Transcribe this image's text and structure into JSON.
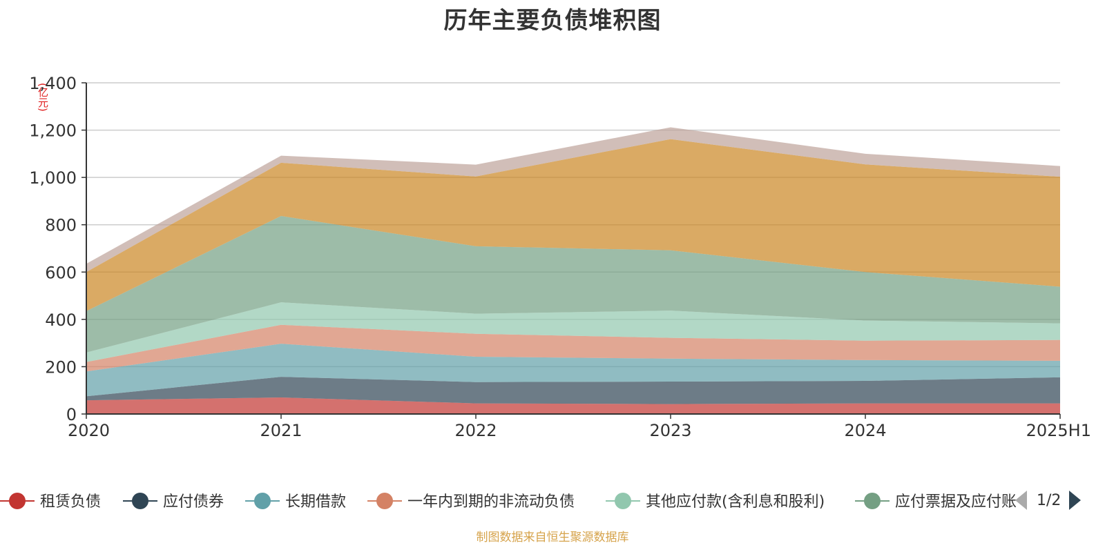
{
  "chart_data": {
    "type": "area",
    "title": "历年主要负债堆积图",
    "ylabel": "(亿元)",
    "categories": [
      "2020",
      "2021",
      "2022",
      "2023",
      "2024",
      "2025H1"
    ],
    "ylim": [
      0,
      1400
    ],
    "yticks": [
      0,
      200,
      400,
      600,
      800,
      1000,
      1200,
      1400
    ],
    "ytick_labels": [
      "0",
      "200",
      "400",
      "600",
      "800",
      "1,000",
      "1,200",
      "1,400"
    ],
    "stacked": true,
    "grid": true,
    "series": [
      {
        "name": "租赁负债",
        "color": "#c23531",
        "values": [
          58,
          70,
          45,
          42,
          45,
          45
        ]
      },
      {
        "name": "应付债券",
        "color": "#2f4554",
        "values": [
          17,
          87,
          90,
          95,
          95,
          110
        ]
      },
      {
        "name": "长期借款",
        "color": "#61a0a8",
        "values": [
          105,
          140,
          107,
          97,
          88,
          70
        ]
      },
      {
        "name": "一年内到期的非流动负债",
        "color": "#d48265",
        "values": [
          40,
          80,
          97,
          88,
          82,
          88
        ]
      },
      {
        "name": "其他应付款(含利息和股利)",
        "color": "#91c7ae",
        "values": [
          40,
          95,
          85,
          115,
          85,
          70
        ]
      },
      {
        "name": "应付票据及应付账款",
        "color": "#749f83",
        "values": [
          175,
          365,
          285,
          255,
          205,
          155
        ]
      },
      {
        "name": "",
        "color": "#ca8622",
        "values": [
          165,
          225,
          295,
          470,
          455,
          465
        ]
      },
      {
        "name": "",
        "color": "#bda29a",
        "values": [
          35,
          30,
          50,
          50,
          45,
          45
        ]
      }
    ]
  },
  "legend": {
    "items": [
      {
        "label": "租赁负债",
        "color": "#c23531"
      },
      {
        "label": "应付债券",
        "color": "#2f4554"
      },
      {
        "label": "长期借款",
        "color": "#61a0a8"
      },
      {
        "label": "一年内到期的非流动负债",
        "color": "#d48265"
      },
      {
        "label": "其他应付款(含利息和股利)",
        "color": "#91c7ae"
      },
      {
        "label": "应付票据及应付账",
        "color": "#749f83"
      }
    ],
    "page_indicator": "1/2"
  },
  "footer": {
    "source": "制图数据来自恒生聚源数据库"
  }
}
